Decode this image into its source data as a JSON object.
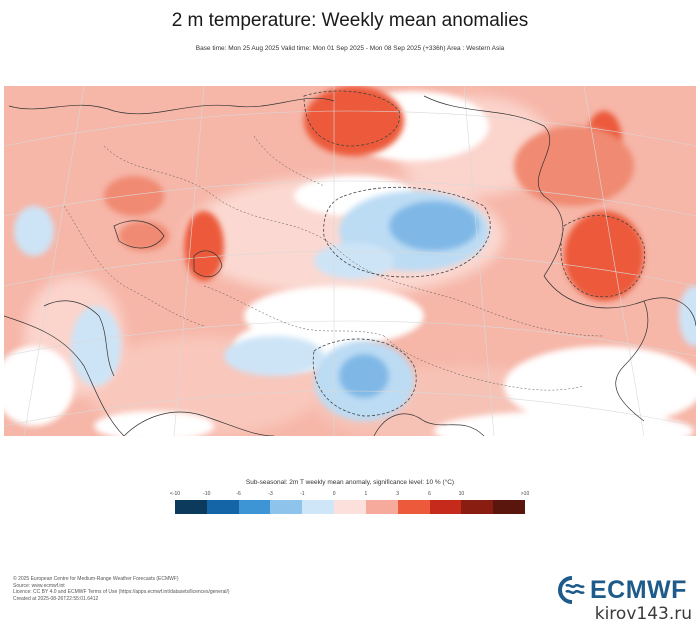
{
  "title": "2 m temperature: Weekly mean anomalies",
  "subtitle": "Base time: Mon 25 Aug 2025 Valid time: Mon 01 Sep 2025 - Mon 08 Sep 2025 (+336h) Area : Western Asia",
  "legend": {
    "title": "Sub-seasonal: 2m T weekly mean anomaly, significance level: 10 % (°C)",
    "ticks": [
      "<-10",
      "-10",
      "-6",
      "-3",
      "-1",
      "0",
      "1",
      "3",
      "6",
      "10",
      ">10"
    ],
    "colors": [
      "#0b3a5c",
      "#1465a8",
      "#3d95d6",
      "#8ec3ec",
      "#cfe6f8",
      "#fbe0dc",
      "#f5aa9b",
      "#ec5a3b",
      "#c52a1a",
      "#8a1d12",
      "#5a150d"
    ]
  },
  "footer": {
    "copyright": "© 2025 European Centre for Medium-Range Weather Forecasts (ECMWF)",
    "source": "Source: www.ecmwf.int",
    "license": "Licence: CC BY 4.0 and ECMWF Terms of Use (https://apps.ecmwf.int/datasets/licences/general/)",
    "created": "Created at 2025-08-26T22:55:01.6412"
  },
  "logo_text": "ECMWF",
  "watermark": "kirov143.ru"
}
